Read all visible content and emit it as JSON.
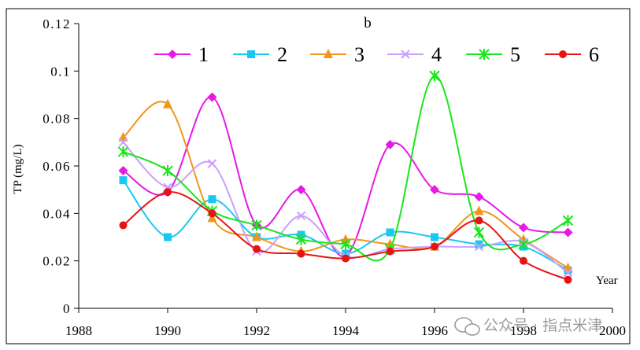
{
  "chart_data": {
    "type": "line",
    "title": "b",
    "ylabel": "TP (mg/L)",
    "xlabel": "Year",
    "x": [
      1989,
      1990,
      1991,
      1992,
      1993,
      1994,
      1995,
      1996,
      1997,
      1998,
      1999
    ],
    "xlim": [
      1988,
      2000
    ],
    "ylim": [
      0,
      0.12
    ],
    "xticks": [
      "1988",
      "1990",
      "1992",
      "1994",
      "1996",
      "1998",
      "2000"
    ],
    "yticks": [
      "0",
      "0.02",
      "0.04",
      "0.06",
      "0.08",
      "0.1",
      "0.12"
    ],
    "legend_position": "top",
    "grid": false,
    "series": [
      {
        "name": "1",
        "color": "#e619e6",
        "marker": "diamond",
        "values": [
          0.058,
          0.049,
          0.089,
          0.035,
          0.05,
          0.022,
          0.069,
          0.05,
          0.047,
          0.034,
          0.032
        ]
      },
      {
        "name": "2",
        "color": "#19c8f0",
        "marker": "square",
        "values": [
          0.054,
          0.03,
          0.046,
          0.03,
          0.031,
          0.023,
          0.032,
          0.03,
          0.027,
          0.026,
          0.016
        ]
      },
      {
        "name": "3",
        "color": "#f0961e",
        "marker": "triangle",
        "values": [
          0.072,
          0.086,
          0.038,
          0.03,
          0.024,
          0.029,
          0.027,
          0.026,
          0.041,
          0.029,
          0.017
        ]
      },
      {
        "name": "4",
        "color": "#c8a0ff",
        "marker": "x",
        "values": [
          0.07,
          0.051,
          0.061,
          0.024,
          0.039,
          0.022,
          0.025,
          0.026,
          0.026,
          0.028,
          0.015
        ]
      },
      {
        "name": "5",
        "color": "#19e619",
        "marker": "asterisk",
        "values": [
          0.066,
          0.058,
          0.041,
          0.035,
          0.029,
          0.027,
          0.025,
          0.098,
          0.032,
          0.027,
          0.037
        ]
      },
      {
        "name": "6",
        "color": "#e61414",
        "marker": "circle",
        "values": [
          0.035,
          0.049,
          0.04,
          0.025,
          0.023,
          0.021,
          0.024,
          0.026,
          0.037,
          0.02,
          0.012
        ]
      }
    ]
  },
  "watermark": {
    "text": "公众号 · 指点米津"
  }
}
